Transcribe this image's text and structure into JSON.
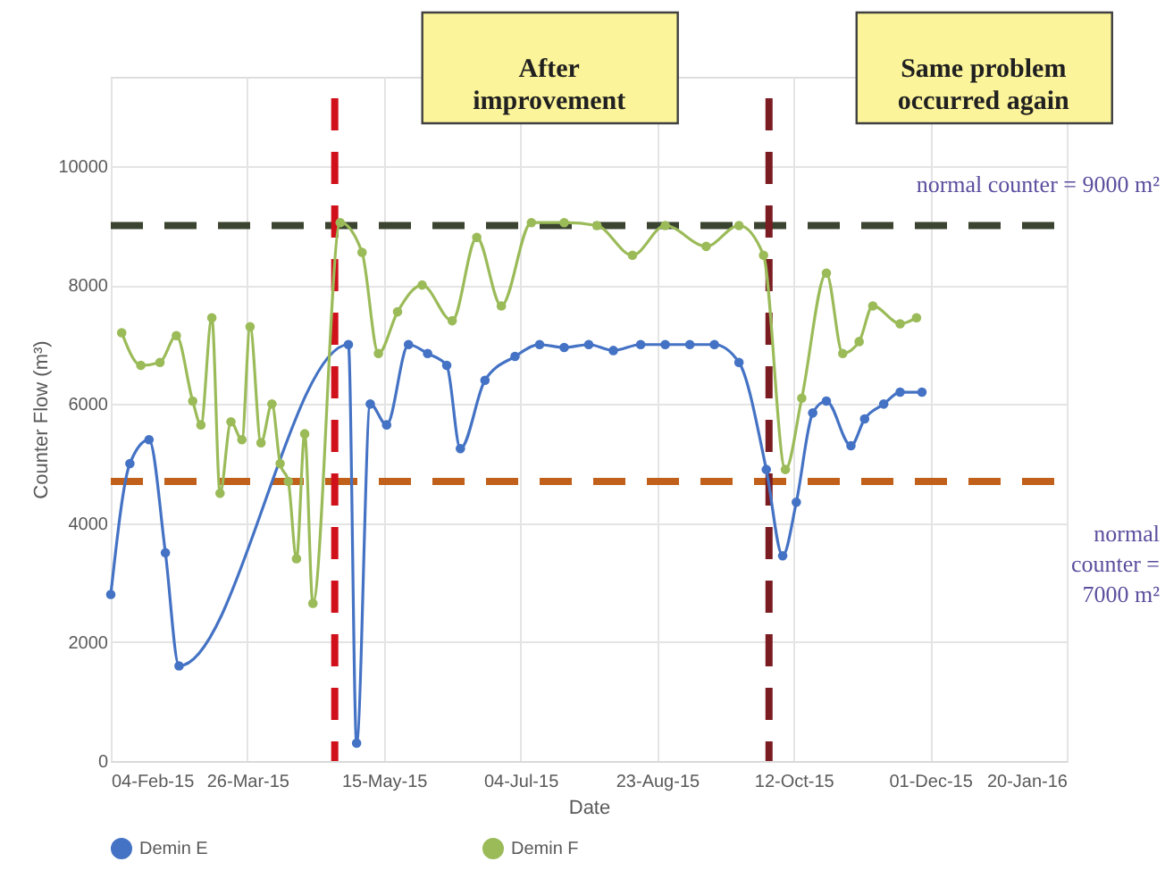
{
  "chart_data": {
    "type": "line",
    "xlabel": "Date",
    "ylabel": "Counter Flow (m³)",
    "xlim": [
      "2015-02-04",
      "2016-01-20"
    ],
    "xticks": [
      {
        "value": "2015-02-04",
        "label": "04-Feb-15"
      },
      {
        "value": "2015-03-26",
        "label": "26-Mar-15"
      },
      {
        "value": "2015-05-15",
        "label": "15-May-15"
      },
      {
        "value": "2015-07-04",
        "label": "04-Jul-15"
      },
      {
        "value": "2015-08-23",
        "label": "23-Aug-15"
      },
      {
        "value": "2015-10-12",
        "label": "12-Oct-15"
      },
      {
        "value": "2015-12-01",
        "label": "01-Dec-15"
      },
      {
        "value": "2016-01-20",
        "label": "20-Jan-16"
      }
    ],
    "ylim": [
      0,
      11500
    ],
    "yticks": [
      0,
      2000,
      4000,
      6000,
      8000,
      10000
    ],
    "annotations": [
      "normal counter = 7000 m²",
      "After improvement",
      "Same problem occurred again"
    ],
    "grid": true,
    "legend": "bottom",
    "marker": "circle",
    "line_style": "solid",
    "series": [
      {
        "name": "Demin E",
        "color": "#4472c4",
        "x": [
          "2015-02-04",
          "2015-02-11",
          "2015-02-18",
          "2015-02-24",
          "2015-03-01",
          "2015-05-02",
          "2015-05-05",
          "2015-05-10",
          "2015-05-16",
          "2015-05-24",
          "2015-05-31",
          "2015-06-07",
          "2015-06-12",
          "2015-06-21",
          "2015-07-02",
          "2015-07-11",
          "2015-07-20",
          "2015-07-29",
          "2015-08-07",
          "2015-08-17",
          "2015-08-26",
          "2015-09-04",
          "2015-09-13",
          "2015-09-22",
          "2015-10-02",
          "2015-10-08",
          "2015-10-13",
          "2015-10-19",
          "2015-10-24",
          "2015-11-02",
          "2015-11-07",
          "2015-11-14",
          "2015-11-20",
          "2015-11-28"
        ],
        "values": [
          2800,
          5000,
          5400,
          3500,
          1600,
          7000,
          300,
          6000,
          5650,
          7000,
          6850,
          6650,
          5250,
          6400,
          6800,
          7000,
          6950,
          7000,
          6900,
          7000,
          7000,
          7000,
          7000,
          6700,
          4900,
          3450,
          4350,
          5850,
          6050,
          5300,
          5750,
          6000,
          6200,
          6200
        ]
      },
      {
        "name": "Demin F",
        "color": "#9bbb59",
        "x": [
          "2015-02-08",
          "2015-02-15",
          "2015-02-22",
          "2015-02-28",
          "2015-03-06",
          "2015-03-09",
          "2015-03-13",
          "2015-03-16",
          "2015-03-20",
          "2015-03-24",
          "2015-03-27",
          "2015-03-31",
          "2015-04-04",
          "2015-04-07",
          "2015-04-10",
          "2015-04-13",
          "2015-04-16",
          "2015-04-19",
          "2015-04-29",
          "2015-05-07",
          "2015-05-13",
          "2015-05-20",
          "2015-05-29",
          "2015-06-09",
          "2015-06-18",
          "2015-06-27",
          "2015-07-08",
          "2015-07-20",
          "2015-08-01",
          "2015-08-14",
          "2015-08-26",
          "2015-09-10",
          "2015-09-22",
          "2015-10-01",
          "2015-10-09",
          "2015-10-15",
          "2015-10-24",
          "2015-10-30",
          "2015-11-05",
          "2015-11-10",
          "2015-11-20",
          "2015-11-26"
        ],
        "values": [
          7200,
          6650,
          6700,
          7150,
          6050,
          5650,
          7450,
          4500,
          5700,
          5400,
          7300,
          5350,
          6000,
          5000,
          4700,
          3400,
          5500,
          2650,
          9050,
          8550,
          6850,
          7550,
          8000,
          7400,
          8800,
          7650,
          9050,
          9050,
          9000,
          8500,
          9000,
          8650,
          9000,
          8500,
          4900,
          6100,
          8200,
          6850,
          7050,
          7650,
          7350,
          7450
        ]
      }
    ],
    "ref_lines": [
      {
        "axis": "y",
        "value": 9000,
        "label": "normal counter = 9000 m²",
        "color": "#3b4430",
        "line_style": "dashed"
      },
      {
        "axis": "y",
        "value": 4700,
        "color": "#c0601a",
        "line_style": "dashed"
      },
      {
        "axis": "x",
        "value": "2015-04-27",
        "color": "#d0101a",
        "line_style": "dashed"
      },
      {
        "axis": "x",
        "value": "2015-10-03",
        "color": "#7a1c22",
        "line_style": "dashed"
      }
    ]
  }
}
